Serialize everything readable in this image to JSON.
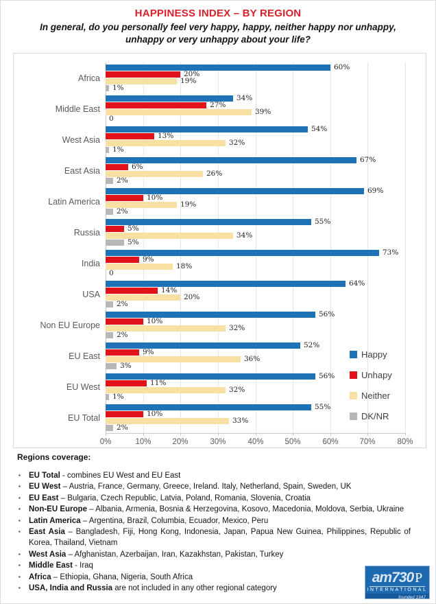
{
  "header": {
    "title": "HAPPINESS INDEX – BY REGION",
    "subtitle_line1": "In general, do you personally feel very happy, happy, neither happy nor unhappy,",
    "subtitle_line2": "unhappy or very unhappy about your life?"
  },
  "chart_data": {
    "type": "bar",
    "orientation": "horizontal",
    "title": "HAPPINESS INDEX – BY REGION",
    "categories": [
      "Africa",
      "Middle East",
      "West Asia",
      "East Asia",
      "Latin America",
      "Russia",
      "India",
      "USA",
      "Non EU Europe",
      "EU East",
      "EU West",
      "EU Total"
    ],
    "series": [
      {
        "name": "Happy",
        "color": "#1F72B5",
        "values": [
          60,
          34,
          54,
          67,
          69,
          55,
          73,
          64,
          56,
          52,
          56,
          55
        ]
      },
      {
        "name": "Unhapy",
        "color": "#E0131A",
        "values": [
          20,
          27,
          13,
          6,
          10,
          5,
          9,
          14,
          10,
          9,
          11,
          10
        ]
      },
      {
        "name": "Neither",
        "color": "#F8DFA2",
        "values": [
          19,
          39,
          32,
          26,
          19,
          34,
          18,
          20,
          32,
          36,
          32,
          33
        ]
      },
      {
        "name": "DK/NR",
        "color": "#B7B7B7",
        "values": [
          1,
          0,
          1,
          2,
          2,
          5,
          0,
          2,
          2,
          3,
          1,
          2
        ]
      }
    ],
    "xlim": [
      0,
      80
    ],
    "x_ticks": [
      "0%",
      "10%",
      "20%",
      "30%",
      "40%",
      "50%",
      "60%",
      "70%",
      "80%"
    ],
    "grid": true,
    "legend_position": "right",
    "value_label_rule": "value + % ; zero shown as 0"
  },
  "notes": {
    "heading": "Regions coverage:",
    "items": [
      {
        "name": "EU Total",
        "text": " - combines EU West and EU East"
      },
      {
        "name": "EU West",
        "text": " – Austria, France, Germany, Greece, Ireland. Italy, Netherland, Spain, Sweden, UK"
      },
      {
        "name": "EU East",
        "text": " – Bulgaria, Czech Republic, Latvia, Poland, Romania, Slovenia, Croatia"
      },
      {
        "name": "Non-EU Europe",
        "text": " – Albania, Armenia, Bosnia & Herzegovina, Kosovo, Macedonia, Moldova, Serbia, Ukraine"
      },
      {
        "name": "Latin America",
        "text": " – Argentina, Brazil, Columbia, Ecuador, Mexico, Peru"
      },
      {
        "name": "East Asia",
        "text": " – Bangladesh, Fiji, Hong Kong, Indonesia, Japan, Papua New Guinea, Philippines, Republic of Korea, Thailand, Vietnam"
      },
      {
        "name": "West Asia",
        "text": " – Afghanistan, Azerbaijan, Iran, Kazakhstan, Pakistan, Turkey"
      },
      {
        "name": "Middle East",
        "text": " - Iraq"
      },
      {
        "name": "Africa",
        "text": " – Ethiopia, Ghana, Nigeria, South Africa"
      },
      {
        "name": "USA, India and Russia",
        "text": " are not included in any other regional category"
      }
    ]
  },
  "logo": {
    "text_main": "am730",
    "text_right": "P",
    "line2": "INTERNATIONAL",
    "line3": "founded 1947"
  }
}
